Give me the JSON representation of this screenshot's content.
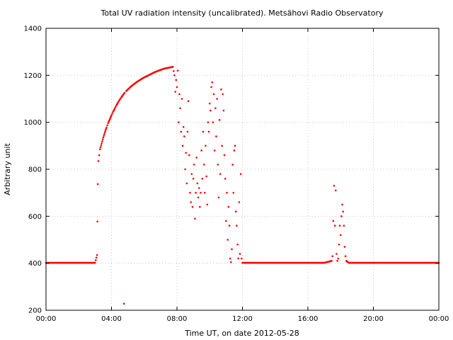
{
  "chart_data": {
    "type": "scatter",
    "title": "Total UV radiation intensity (uncalibrated). Metsähovi Radio Observatory",
    "xlabel": "Time UT, on date 2012-05-28",
    "ylabel": "Arbitrary unit",
    "xlim": [
      0,
      24
    ],
    "ylim": [
      200,
      1400
    ],
    "x_ticks": [
      {
        "value": 0,
        "label": "00:00"
      },
      {
        "value": 4,
        "label": "04:00"
      },
      {
        "value": 8,
        "label": "08:00"
      },
      {
        "value": 12,
        "label": "12:00"
      },
      {
        "value": 16,
        "label": "16:00"
      },
      {
        "value": 20,
        "label": "20:00"
      },
      {
        "value": 24,
        "label": "00:00"
      }
    ],
    "y_ticks": [
      {
        "value": 200,
        "label": "200"
      },
      {
        "value": 400,
        "label": "400"
      },
      {
        "value": 600,
        "label": "600"
      },
      {
        "value": 800,
        "label": "800"
      },
      {
        "value": 1000,
        "label": "1000"
      },
      {
        "value": 1200,
        "label": "1200"
      },
      {
        "value": 1400,
        "label": "1400"
      }
    ],
    "grid": true,
    "marker_color": "#ff0000",
    "series": [
      {
        "x_units": "hours UT",
        "points": [
          [
            0.0,
            402
          ],
          [
            0.5,
            402
          ],
          [
            1.0,
            402
          ],
          [
            1.5,
            402
          ],
          [
            2.0,
            402
          ],
          [
            2.5,
            402
          ],
          [
            3.0,
            402
          ],
          [
            3.12,
            435
          ],
          [
            3.14,
            578
          ],
          [
            3.16,
            737
          ],
          [
            3.2,
            835
          ],
          [
            3.25,
            860
          ],
          [
            3.3,
            885
          ],
          [
            3.4,
            910
          ],
          [
            3.5,
            935
          ],
          [
            3.6,
            958
          ],
          [
            3.7,
            978
          ],
          [
            3.8,
            997
          ],
          [
            3.9,
            1013
          ],
          [
            4.0,
            1030
          ],
          [
            4.1,
            1045
          ],
          [
            4.2,
            1058
          ],
          [
            4.3,
            1072
          ],
          [
            4.4,
            1084
          ],
          [
            4.5,
            1096
          ],
          [
            4.6,
            1106
          ],
          [
            4.7,
            1116
          ],
          [
            4.8,
            1125
          ],
          [
            4.76,
            228
          ],
          [
            4.9,
            1133
          ],
          [
            5.0,
            1140
          ],
          [
            5.2,
            1153
          ],
          [
            5.4,
            1164
          ],
          [
            5.6,
            1174
          ],
          [
            5.8,
            1183
          ],
          [
            6.0,
            1191
          ],
          [
            6.2,
            1198
          ],
          [
            6.4,
            1205
          ],
          [
            6.6,
            1212
          ],
          [
            6.8,
            1218
          ],
          [
            7.0,
            1223
          ],
          [
            7.2,
            1228
          ],
          [
            7.4,
            1231
          ],
          [
            7.6,
            1234
          ],
          [
            7.75,
            1236
          ],
          [
            7.85,
            1200
          ],
          [
            7.9,
            1130
          ],
          [
            7.95,
            1180
          ],
          [
            8.0,
            1150
          ],
          [
            8.05,
            1220
          ],
          [
            8.1,
            1000
          ],
          [
            8.15,
            1120
          ],
          [
            8.2,
            1060
          ],
          [
            8.25,
            960
          ],
          [
            8.3,
            1100
          ],
          [
            8.35,
            900
          ],
          [
            8.4,
            980
          ],
          [
            8.45,
            940
          ],
          [
            8.5,
            800
          ],
          [
            8.55,
            870
          ],
          [
            8.6,
            740
          ],
          [
            8.65,
            960
          ],
          [
            8.7,
            1090
          ],
          [
            8.75,
            860
          ],
          [
            8.8,
            700
          ],
          [
            8.85,
            660
          ],
          [
            8.9,
            780
          ],
          [
            8.95,
            640
          ],
          [
            9.0,
            760
          ],
          [
            9.05,
            820
          ],
          [
            9.1,
            590
          ],
          [
            9.15,
            700
          ],
          [
            9.2,
            850
          ],
          [
            9.25,
            740
          ],
          [
            9.3,
            680
          ],
          [
            9.35,
            720
          ],
          [
            9.4,
            640
          ],
          [
            9.45,
            700
          ],
          [
            9.5,
            880
          ],
          [
            9.55,
            760
          ],
          [
            9.6,
            960
          ],
          [
            9.65,
            820
          ],
          [
            9.7,
            700
          ],
          [
            9.75,
            900
          ],
          [
            9.8,
            770
          ],
          [
            9.85,
            650
          ],
          [
            9.9,
            1000
          ],
          [
            9.95,
            960
          ],
          [
            10.0,
            1080
          ],
          [
            10.05,
            1050
          ],
          [
            10.1,
            1150
          ],
          [
            10.15,
            1170
          ],
          [
            10.2,
            1000
          ],
          [
            10.25,
            1120
          ],
          [
            10.3,
            880
          ],
          [
            10.35,
            1060
          ],
          [
            10.4,
            940
          ],
          [
            10.45,
            1100
          ],
          [
            10.5,
            820
          ],
          [
            10.55,
            680
          ],
          [
            10.6,
            1010
          ],
          [
            10.65,
            780
          ],
          [
            10.7,
            1140
          ],
          [
            10.75,
            900
          ],
          [
            10.8,
            1120
          ],
          [
            10.85,
            1050
          ],
          [
            10.9,
            860
          ],
          [
            10.95,
            760
          ],
          [
            11.0,
            580
          ],
          [
            11.05,
            700
          ],
          [
            11.1,
            500
          ],
          [
            11.15,
            640
          ],
          [
            11.2,
            560
          ],
          [
            11.25,
            420
          ],
          [
            11.3,
            405
          ],
          [
            11.35,
            460
          ],
          [
            11.4,
            820
          ],
          [
            11.45,
            700
          ],
          [
            11.5,
            880
          ],
          [
            11.55,
            900
          ],
          [
            11.6,
            620
          ],
          [
            11.65,
            560
          ],
          [
            11.7,
            480
          ],
          [
            11.75,
            420
          ],
          [
            11.8,
            660
          ],
          [
            11.85,
            440
          ],
          [
            11.9,
            780
          ],
          [
            11.95,
            420
          ],
          [
            12.0,
            402
          ],
          [
            12.5,
            402
          ],
          [
            13.0,
            402
          ],
          [
            13.5,
            402
          ],
          [
            14.0,
            402
          ],
          [
            14.5,
            402
          ],
          [
            15.0,
            402
          ],
          [
            15.5,
            402
          ],
          [
            16.0,
            402
          ],
          [
            16.5,
            402
          ],
          [
            17.0,
            402
          ],
          [
            17.45,
            410
          ],
          [
            17.5,
            430
          ],
          [
            17.55,
            580
          ],
          [
            17.6,
            730
          ],
          [
            17.65,
            560
          ],
          [
            17.7,
            710
          ],
          [
            17.75,
            440
          ],
          [
            17.8,
            410
          ],
          [
            17.85,
            420
          ],
          [
            17.9,
            480
          ],
          [
            17.95,
            560
          ],
          [
            18.0,
            520
          ],
          [
            18.05,
            600
          ],
          [
            18.1,
            650
          ],
          [
            18.15,
            620
          ],
          [
            18.2,
            560
          ],
          [
            18.25,
            470
          ],
          [
            18.3,
            430
          ],
          [
            18.35,
            410
          ],
          [
            18.5,
            402
          ],
          [
            19.0,
            402
          ],
          [
            19.5,
            402
          ],
          [
            20.0,
            402
          ],
          [
            20.5,
            402
          ],
          [
            21.0,
            402
          ],
          [
            21.5,
            402
          ],
          [
            22.0,
            402
          ],
          [
            22.5,
            402
          ],
          [
            23.0,
            402
          ],
          [
            23.5,
            402
          ],
          [
            24.0,
            402
          ]
        ]
      }
    ]
  }
}
